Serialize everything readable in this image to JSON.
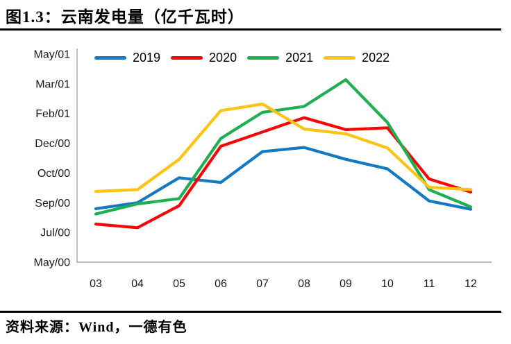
{
  "header": {
    "title": "图1.3：云南发电量（亿千瓦时）"
  },
  "footer": {
    "source": "资料来源：Wind，一德有色"
  },
  "colors": {
    "series_2019": "#1578C3",
    "series_2020": "#FA0505",
    "series_2021": "#1EAF50",
    "series_2022": "#FFC314",
    "axis_line": "#A6A6A6",
    "tick_text": "#1A1A1A",
    "rule": "#000000"
  },
  "chart_data": {
    "type": "line",
    "title": "云南发电量（亿千瓦时）",
    "categories": [
      "03",
      "04",
      "05",
      "06",
      "07",
      "08",
      "09",
      "10",
      "11",
      "12"
    ],
    "xlabel": "",
    "ylabel": "",
    "legend_position": "top",
    "grid": false,
    "y_axis": {
      "min": 150,
      "max": 500,
      "major_unit": 50,
      "tick_values": [
        500,
        450,
        400,
        350,
        300,
        250,
        200,
        150
      ],
      "tick_labels": [
        "May/01",
        "Mar/01",
        "Feb/01",
        "Dec/00",
        "Oct/00",
        "Sep/00",
        "Jul/00",
        "May/00"
      ]
    },
    "series": [
      {
        "name": "2019",
        "color": "#1578C3",
        "values": [
          240,
          250,
          292,
          284,
          336,
          343,
          323,
          307,
          253,
          239
        ]
      },
      {
        "name": "2020",
        "color": "#FA0505",
        "values": [
          214,
          208,
          245,
          345,
          369,
          393,
          373,
          376,
          290,
          268
        ]
      },
      {
        "name": "2021",
        "color": "#1EAF50",
        "values": [
          231,
          248,
          257,
          358,
          402,
          412,
          457,
          385,
          272,
          243
        ]
      },
      {
        "name": "2022",
        "color": "#FFC314",
        "values": [
          269,
          272,
          323,
          405,
          416,
          374,
          366,
          342,
          276,
          272
        ]
      }
    ]
  }
}
